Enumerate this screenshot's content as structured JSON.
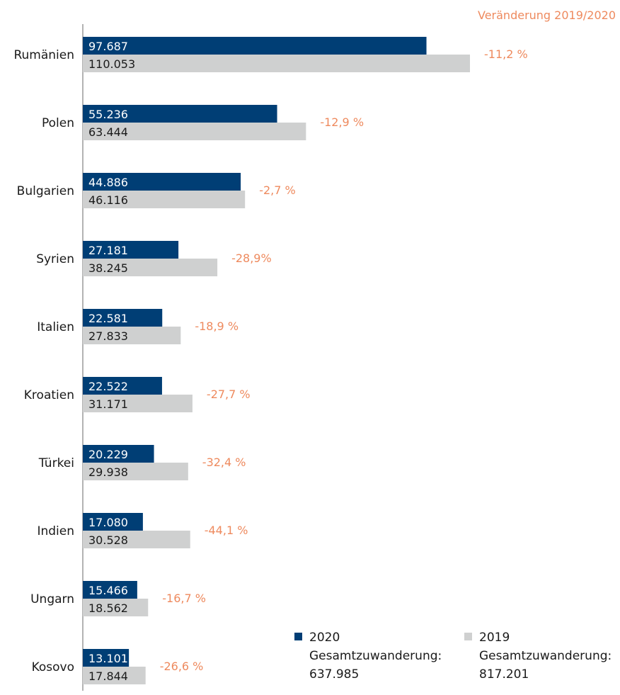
{
  "chart_data": {
    "type": "bar",
    "orientation": "horizontal",
    "header": "Veränderung 2019/2020",
    "categories": [
      "Rumänien",
      "Polen",
      "Bulgarien",
      "Syrien",
      "Italien",
      "Kroatien",
      "Türkei",
      "Indien",
      "Ungarn",
      "Kosovo"
    ],
    "series": [
      {
        "name": "2020",
        "color": "#003e75",
        "values": [
          97687,
          55236,
          44886,
          27181,
          22581,
          22522,
          20229,
          17080,
          15466,
          13101
        ],
        "labels": [
          "97.687",
          "55.236",
          "44.886",
          "27.181",
          "22.581",
          "22.522",
          "20.229",
          "17.080",
          "15.466",
          "13.101"
        ]
      },
      {
        "name": "2019",
        "color": "#cfd0d0",
        "values": [
          110053,
          63444,
          46116,
          38245,
          27833,
          31171,
          29938,
          30528,
          18562,
          17844
        ],
        "labels": [
          "110.053",
          "63.444",
          "46.116",
          "38.245",
          "27.833",
          "31.171",
          "29.938",
          "30.528",
          "18.562",
          "17.844"
        ]
      }
    ],
    "changes": [
      "-11,2 %",
      "-12,9 %",
      "-2,7 %",
      "-28,9%",
      "-18,9 %",
      "-27,7 %",
      "-32,4 %",
      "-44,1 %",
      "-16,7 %",
      "-26,6 %"
    ],
    "change_color": "#ee8a5e",
    "xlim": [
      0,
      110053
    ],
    "grid": false,
    "legend": {
      "placement": "bottom-right",
      "items": [
        {
          "year": "2020",
          "line1": "Gesamtzuwanderung:",
          "line2": "637.985",
          "color": "#003e75"
        },
        {
          "year": "2019",
          "line1": "Gesamtzuwanderung:",
          "line2": "817.201",
          "color": "#cfd0d0"
        }
      ]
    }
  }
}
